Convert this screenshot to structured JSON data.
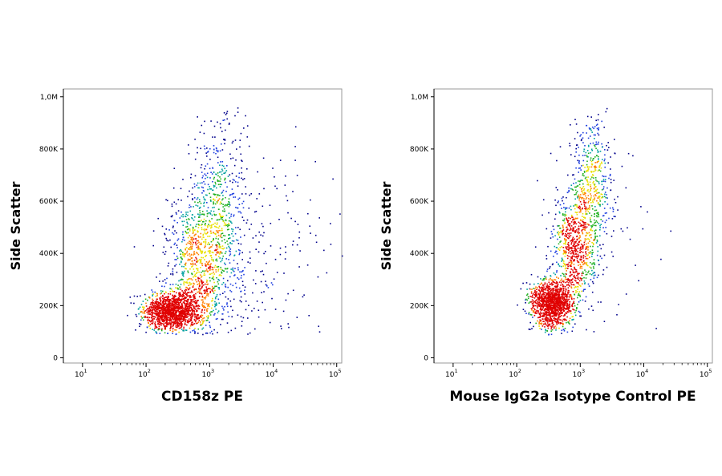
{
  "chart_data": [
    {
      "type": "scatter",
      "subtype": "flow-cytometry-density-dot-plot",
      "xlabel": "CD158z PE",
      "ylabel": "Side Scatter",
      "x_scale": "log",
      "xlim": [
        5,
        120000
      ],
      "ylim": [
        -20000,
        1030000
      ],
      "x_ticks": [
        {
          "base": "10",
          "exp": "1",
          "value": 10
        },
        {
          "base": "10",
          "exp": "2",
          "value": 100
        },
        {
          "base": "10",
          "exp": "3",
          "value": 1000
        },
        {
          "base": "10",
          "exp": "4",
          "value": 10000
        },
        {
          "base": "10",
          "exp": "5",
          "value": 100000
        }
      ],
      "y_ticks": [
        {
          "label": "0",
          "value": 0
        },
        {
          "label": "200K",
          "value": 200000
        },
        {
          "label": "400K",
          "value": 400000
        },
        {
          "label": "600K",
          "value": 600000
        },
        {
          "label": "800K",
          "value": 800000
        },
        {
          "label": "1,0M",
          "value": 1000000
        }
      ],
      "density_colors": [
        "#00008b",
        "#1f3fe0",
        "#00a0a0",
        "#20b020",
        "#e8e000",
        "#ff8000",
        "#e00000"
      ],
      "clusters": [
        {
          "x_center": 250,
          "y_center": 180000,
          "x_spread_log": 0.22,
          "y_spread": 35000,
          "share": 0.45
        },
        {
          "x_center": 700,
          "y_center": 350000,
          "x_spread_log": 0.28,
          "y_spread": 150000,
          "share": 0.35
        },
        {
          "x_center": 1500,
          "y_center": 650000,
          "x_spread_log": 0.22,
          "y_spread": 170000,
          "share": 0.12
        },
        {
          "x_center": 5000,
          "y_center": 350000,
          "x_spread_log": 0.6,
          "y_spread": 200000,
          "share": 0.08
        }
      ],
      "approx_event_count": 3000
    },
    {
      "type": "scatter",
      "subtype": "flow-cytometry-density-dot-plot",
      "xlabel": "Mouse IgG2a Isotype Control PE",
      "ylabel": "Side Scatter",
      "x_scale": "log",
      "xlim": [
        5,
        120000
      ],
      "ylim": [
        -20000,
        1030000
      ],
      "x_ticks": [
        {
          "base": "10",
          "exp": "1",
          "value": 10
        },
        {
          "base": "10",
          "exp": "2",
          "value": 100
        },
        {
          "base": "10",
          "exp": "3",
          "value": 1000
        },
        {
          "base": "10",
          "exp": "4",
          "value": 10000
        },
        {
          "base": "10",
          "exp": "5",
          "value": 100000
        }
      ],
      "y_ticks": [
        {
          "label": "0",
          "value": 0
        },
        {
          "label": "200K",
          "value": 200000
        },
        {
          "label": "400K",
          "value": 400000
        },
        {
          "label": "600K",
          "value": 600000
        },
        {
          "label": "800K",
          "value": 800000
        },
        {
          "label": "1,0M",
          "value": 1000000
        }
      ],
      "density_colors": [
        "#00008b",
        "#1f3fe0",
        "#00a0a0",
        "#20b020",
        "#e8e000",
        "#ff8000",
        "#e00000"
      ],
      "clusters": [
        {
          "x_center": 350,
          "y_center": 210000,
          "x_spread_log": 0.16,
          "y_spread": 45000,
          "share": 0.5
        },
        {
          "x_center": 800,
          "y_center": 420000,
          "x_spread_log": 0.18,
          "y_spread": 110000,
          "share": 0.3
        },
        {
          "x_center": 1500,
          "y_center": 700000,
          "x_spread_log": 0.15,
          "y_spread": 130000,
          "share": 0.17
        },
        {
          "x_center": 2000,
          "y_center": 400000,
          "x_spread_log": 0.5,
          "y_spread": 200000,
          "share": 0.03
        }
      ],
      "approx_event_count": 2500
    }
  ]
}
